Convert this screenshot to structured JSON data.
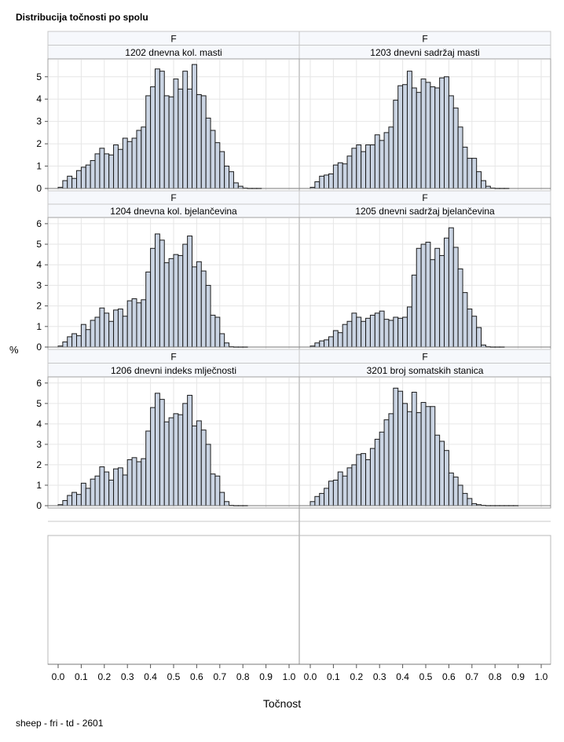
{
  "title": "Distribucija točnosti po spolu",
  "footnote": "sheep - fri - td - 2601",
  "chart_data": {
    "type": "bar",
    "title": "Distribucija točnosti po spolu",
    "xlabel": "Točnost",
    "ylabel": "%",
    "xlim": [
      0,
      1
    ],
    "x_ticks": [
      "0.0",
      "0.1",
      "0.2",
      "0.3",
      "0.4",
      "0.5",
      "0.6",
      "0.7",
      "0.8",
      "0.9",
      "1.0"
    ],
    "bin_width": 0.02,
    "grid": true,
    "panels": [
      {
        "group": "F",
        "trait": "1202 dnevna kol. masti",
        "ylim": [
          0,
          5.8
        ],
        "y_ticks": [
          0,
          1,
          2,
          3,
          4,
          5
        ],
        "bin_start": 0.01,
        "values": [
          0.05,
          0.35,
          0.55,
          0.45,
          0.8,
          0.95,
          1.05,
          1.25,
          1.55,
          1.8,
          1.55,
          1.5,
          1.95,
          1.75,
          2.25,
          2.1,
          2.25,
          2.6,
          2.75,
          4.15,
          4.55,
          5.35,
          5.25,
          4.15,
          4.1,
          4.9,
          4.45,
          5.25,
          4.45,
          5.55,
          4.2,
          4.15,
          3.15,
          2.6,
          2.05,
          1.65,
          1.0,
          0.75,
          0.25,
          0.1,
          0.02,
          0.01,
          0.01,
          0.01
        ]
      },
      {
        "group": "F",
        "trait": "1203 dnevni sadržaj masti",
        "ylim": [
          0,
          5.8
        ],
        "y_ticks": [
          0,
          1,
          2,
          3,
          4,
          5
        ],
        "bin_start": 0.01,
        "values": [
          0.05,
          0.3,
          0.55,
          0.6,
          0.65,
          1.05,
          1.15,
          1.1,
          1.45,
          1.8,
          1.95,
          1.65,
          1.95,
          1.95,
          2.4,
          2.15,
          2.5,
          2.75,
          3.95,
          4.6,
          4.65,
          5.25,
          4.5,
          4.3,
          4.9,
          4.75,
          4.55,
          4.5,
          4.95,
          5.0,
          4.15,
          3.6,
          2.75,
          1.85,
          1.35,
          1.35,
          0.75,
          0.35,
          0.1,
          0.02,
          0.01,
          0.01,
          0.01
        ]
      },
      {
        "group": "F",
        "trait": "1204 dnevna kol. bjelančevina",
        "ylim": [
          0,
          6.3
        ],
        "y_ticks": [
          0,
          1,
          2,
          3,
          4,
          5,
          6
        ],
        "bin_start": 0.01,
        "values": [
          0.05,
          0.25,
          0.5,
          0.65,
          0.55,
          1.1,
          0.85,
          1.3,
          1.45,
          1.9,
          1.65,
          1.25,
          1.8,
          1.85,
          1.5,
          2.25,
          2.35,
          2.15,
          2.3,
          3.65,
          4.8,
          5.5,
          5.2,
          4.1,
          4.3,
          4.5,
          4.45,
          5.0,
          5.4,
          3.9,
          4.15,
          3.7,
          3.0,
          1.55,
          1.45,
          0.65,
          0.2,
          0.02,
          0.01,
          0.01,
          0.01
        ]
      },
      {
        "group": "F",
        "trait": "1205 dnevni sadržaj bjelančevina",
        "ylim": [
          0,
          6.3
        ],
        "y_ticks": [
          0,
          1,
          2,
          3,
          4,
          5,
          6
        ],
        "bin_start": 0.01,
        "values": [
          0.05,
          0.2,
          0.3,
          0.35,
          0.5,
          0.8,
          0.7,
          1.1,
          1.25,
          1.65,
          1.45,
          1.25,
          1.4,
          1.55,
          1.65,
          1.75,
          1.35,
          1.3,
          1.45,
          1.4,
          1.45,
          1.95,
          3.5,
          4.8,
          5.0,
          5.1,
          4.25,
          4.8,
          4.45,
          5.3,
          5.8,
          4.85,
          3.8,
          2.65,
          1.85,
          1.5,
          0.95,
          0.1,
          0.02,
          0.01,
          0.01,
          0.01
        ]
      },
      {
        "group": "F",
        "trait": "1206 dnevni indeks mlječnosti",
        "ylim": [
          0,
          6.3
        ],
        "y_ticks": [
          0,
          1,
          2,
          3,
          4,
          5,
          6
        ],
        "bin_start": 0.01,
        "values": [
          0.05,
          0.25,
          0.5,
          0.65,
          0.55,
          1.1,
          0.85,
          1.3,
          1.45,
          1.9,
          1.65,
          1.25,
          1.8,
          1.85,
          1.5,
          2.25,
          2.35,
          2.15,
          2.3,
          3.65,
          4.8,
          5.5,
          5.2,
          4.1,
          4.3,
          4.5,
          4.45,
          5.0,
          5.4,
          3.9,
          4.15,
          3.7,
          3.0,
          1.55,
          1.45,
          0.65,
          0.2,
          0.02,
          0.01,
          0.01,
          0.01
        ]
      },
      {
        "group": "F",
        "trait": "3201 broj somatskih stanica",
        "ylim": [
          0,
          6.3
        ],
        "y_ticks": [
          0,
          1,
          2,
          3,
          4,
          5,
          6
        ],
        "bin_start": 0.01,
        "values": [
          0.2,
          0.45,
          0.6,
          0.85,
          1.2,
          1.25,
          1.65,
          1.45,
          1.85,
          2.0,
          2.5,
          2.55,
          2.25,
          2.8,
          3.25,
          3.6,
          4.2,
          4.5,
          5.75,
          5.6,
          5.0,
          4.6,
          5.55,
          4.55,
          5.05,
          4.85,
          4.85,
          3.45,
          3.15,
          2.7,
          1.6,
          1.4,
          1.0,
          0.6,
          0.35,
          0.1,
          0.05,
          0.02,
          0.01,
          0.01,
          0.01,
          0.01,
          0.01,
          0.01,
          0.01
        ]
      }
    ]
  }
}
